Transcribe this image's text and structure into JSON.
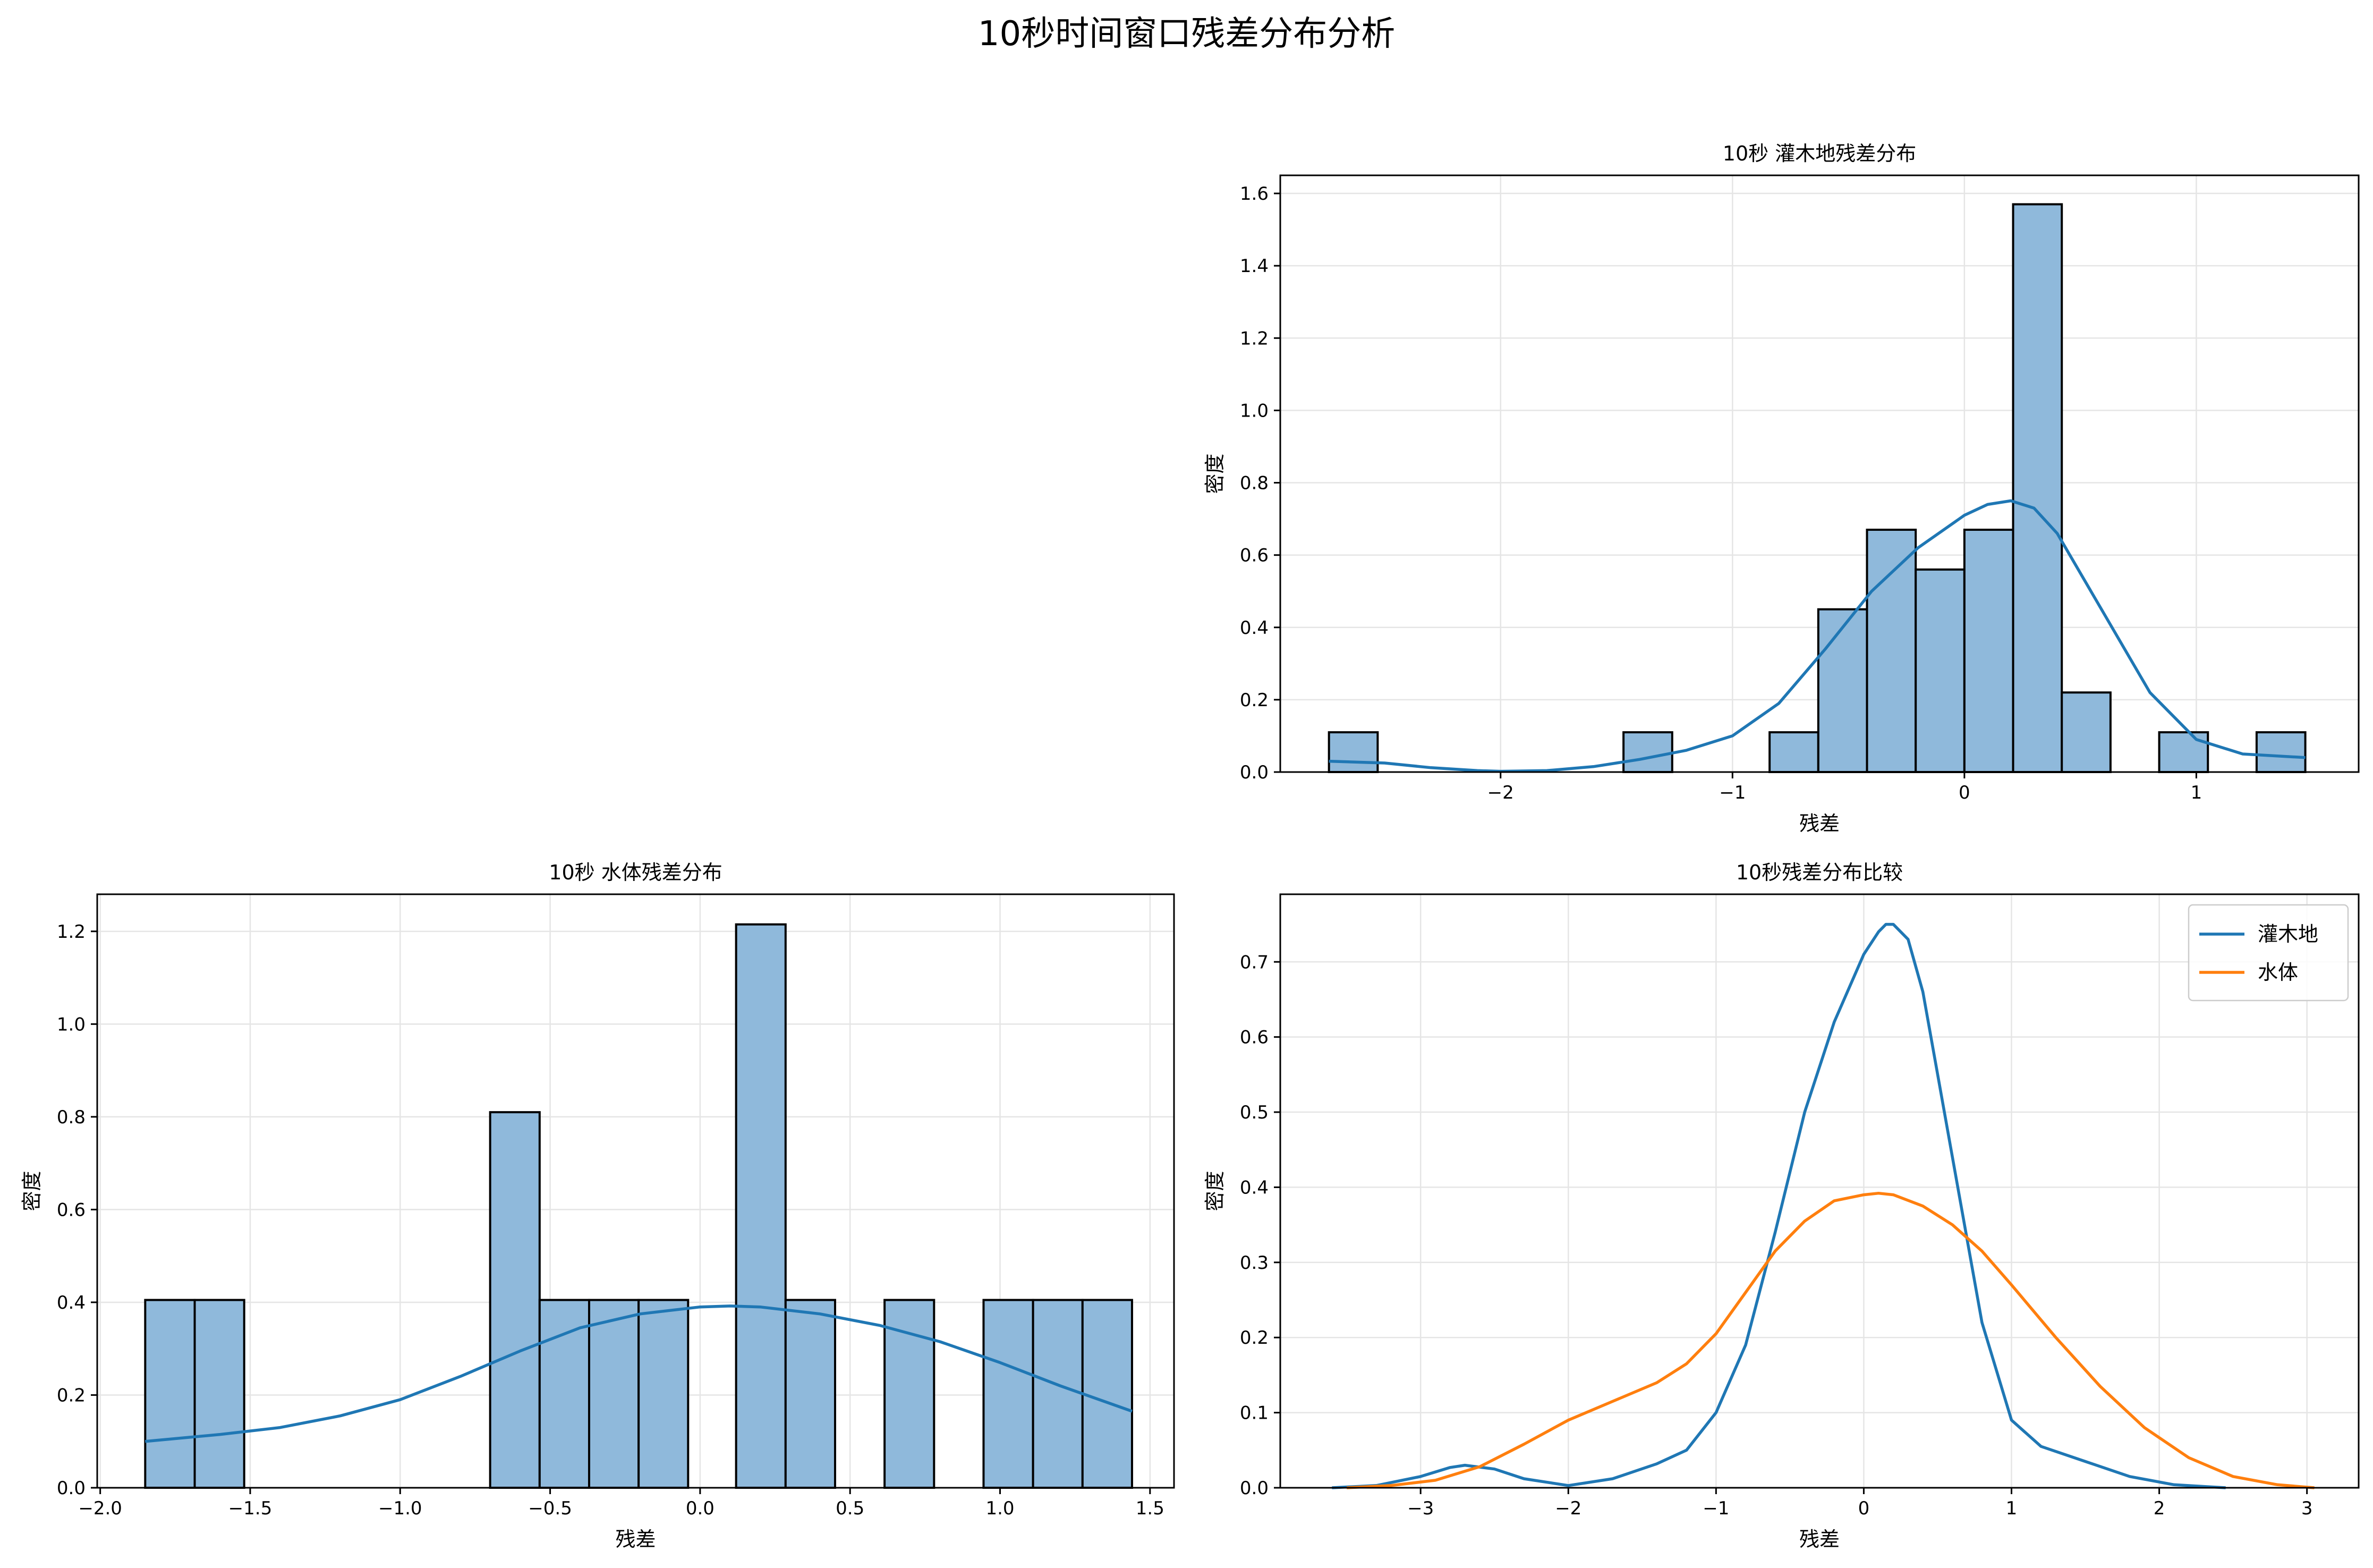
{
  "suptitle": "10秒时间窗口残差分布分析",
  "colors": {
    "hist_fill": "#8fb9db",
    "hist_edge": "#000000",
    "blue": "#1f77b4",
    "orange": "#ff7f0e",
    "grid": "#e5e5e5"
  },
  "chart_data": [
    {
      "type": "bar",
      "title": "10秒 灌木地残差分布",
      "xlabel": "残差",
      "ylabel": "密度",
      "xlim": [
        -2.95,
        1.7
      ],
      "ylim": [
        0,
        1.65
      ],
      "xticks": [
        -2,
        -1,
        0,
        1
      ],
      "xtick_labels": [
        "−2",
        "−1",
        "0",
        "1"
      ],
      "yticks": [
        0,
        0.2,
        0.4,
        0.6,
        0.8,
        1.0,
        1.2,
        1.4,
        1.6
      ],
      "ytick_labels": [
        "0.0",
        "0.2",
        "0.4",
        "0.6",
        "0.8",
        "1.0",
        "1.2",
        "1.4",
        "1.6"
      ],
      "grid": true,
      "bins": [
        {
          "x0": -2.74,
          "x1": -2.53,
          "value": 0.11
        },
        {
          "x0": -1.47,
          "x1": -1.26,
          "value": 0.11
        },
        {
          "x0": -0.84,
          "x1": -0.63,
          "value": 0.11
        },
        {
          "x0": -0.63,
          "x1": -0.42,
          "value": 0.45
        },
        {
          "x0": -0.42,
          "x1": -0.21,
          "value": 0.67
        },
        {
          "x0": -0.21,
          "x1": 0.0,
          "value": 0.56
        },
        {
          "x0": 0.0,
          "x1": 0.21,
          "value": 0.67
        },
        {
          "x0": 0.21,
          "x1": 0.42,
          "value": 1.57
        },
        {
          "x0": 0.42,
          "x1": 0.63,
          "value": 0.22
        },
        {
          "x0": 0.84,
          "x1": 1.05,
          "value": 0.11
        },
        {
          "x0": 1.26,
          "x1": 1.47,
          "value": 0.11
        }
      ],
      "kde": {
        "x": [
          -2.74,
          -2.5,
          -2.3,
          -2.1,
          -2.0,
          -1.8,
          -1.6,
          -1.4,
          -1.2,
          -1.0,
          -0.8,
          -0.6,
          -0.4,
          -0.2,
          0.0,
          0.1,
          0.2,
          0.3,
          0.4,
          0.6,
          0.8,
          1.0,
          1.2,
          1.47
        ],
        "y": [
          0.03,
          0.025,
          0.012,
          0.004,
          0.002,
          0.004,
          0.015,
          0.035,
          0.06,
          0.1,
          0.19,
          0.34,
          0.5,
          0.62,
          0.71,
          0.74,
          0.75,
          0.73,
          0.66,
          0.44,
          0.22,
          0.09,
          0.05,
          0.04
        ]
      }
    },
    {
      "type": "bar",
      "title": "10秒 水体残差分布",
      "xlabel": "残差",
      "ylabel": "密度",
      "xlim": [
        -2.01,
        1.58
      ],
      "ylim": [
        0,
        1.28
      ],
      "xticks": [
        -2.0,
        -1.5,
        -1.0,
        -0.5,
        0.0,
        0.5,
        1.0,
        1.5
      ],
      "xtick_labels": [
        "−2.0",
        "−1.5",
        "−1.0",
        "−0.5",
        "0.0",
        "0.5",
        "1.0",
        "1.5"
      ],
      "yticks": [
        0,
        0.2,
        0.4,
        0.6,
        0.8,
        1.0,
        1.2
      ],
      "ytick_labels": [
        "0.0",
        "0.2",
        "0.4",
        "0.6",
        "0.8",
        "1.0",
        "1.2"
      ],
      "grid": true,
      "bins": [
        {
          "x0": -1.85,
          "x1": -1.685,
          "value": 0.405
        },
        {
          "x0": -1.685,
          "x1": -1.52,
          "value": 0.405
        },
        {
          "x0": -0.7,
          "x1": -0.535,
          "value": 0.81
        },
        {
          "x0": -0.535,
          "x1": -0.37,
          "value": 0.405
        },
        {
          "x0": -0.37,
          "x1": -0.205,
          "value": 0.405
        },
        {
          "x0": -0.205,
          "x1": -0.04,
          "value": 0.405
        },
        {
          "x0": 0.12,
          "x1": 0.285,
          "value": 1.215
        },
        {
          "x0": 0.285,
          "x1": 0.45,
          "value": 0.405
        },
        {
          "x0": 0.615,
          "x1": 0.78,
          "value": 0.405
        },
        {
          "x0": 0.945,
          "x1": 1.11,
          "value": 0.405
        },
        {
          "x0": 1.11,
          "x1": 1.275,
          "value": 0.405
        },
        {
          "x0": 1.275,
          "x1": 1.44,
          "value": 0.405
        }
      ],
      "kde": {
        "x": [
          -1.85,
          -1.6,
          -1.4,
          -1.2,
          -1.0,
          -0.8,
          -0.6,
          -0.4,
          -0.2,
          0.0,
          0.1,
          0.2,
          0.4,
          0.6,
          0.8,
          1.0,
          1.2,
          1.44
        ],
        "y": [
          0.1,
          0.115,
          0.13,
          0.155,
          0.19,
          0.24,
          0.295,
          0.345,
          0.375,
          0.39,
          0.392,
          0.39,
          0.375,
          0.35,
          0.315,
          0.27,
          0.22,
          0.165
        ]
      }
    },
    {
      "type": "line",
      "title": "10秒残差分布比较",
      "xlabel": "残差",
      "ylabel": "密度",
      "xlim": [
        -3.95,
        3.35
      ],
      "ylim": [
        0,
        0.79
      ],
      "xticks": [
        -3,
        -2,
        -1,
        0,
        1,
        2,
        3
      ],
      "xtick_labels": [
        "−3",
        "−2",
        "−1",
        "0",
        "1",
        "2",
        "3"
      ],
      "yticks": [
        0,
        0.1,
        0.2,
        0.3,
        0.4,
        0.5,
        0.6,
        0.7
      ],
      "ytick_labels": [
        "0.0",
        "0.1",
        "0.2",
        "0.3",
        "0.4",
        "0.5",
        "0.6",
        "0.7"
      ],
      "grid": true,
      "legend_position": "top-right",
      "series": [
        {
          "name": "灌木地",
          "color": "#1f77b4",
          "x": [
            -3.6,
            -3.3,
            -3.0,
            -2.8,
            -2.7,
            -2.5,
            -2.3,
            -2.0,
            -1.7,
            -1.4,
            -1.2,
            -1.0,
            -0.8,
            -0.6,
            -0.4,
            -0.2,
            0.0,
            0.1,
            0.15,
            0.2,
            0.3,
            0.4,
            0.6,
            0.8,
            1.0,
            1.2,
            1.5,
            1.8,
            2.1,
            2.45
          ],
          "y": [
            0.0,
            0.003,
            0.015,
            0.027,
            0.03,
            0.025,
            0.012,
            0.003,
            0.012,
            0.032,
            0.05,
            0.1,
            0.19,
            0.34,
            0.5,
            0.62,
            0.71,
            0.74,
            0.75,
            0.75,
            0.73,
            0.66,
            0.44,
            0.22,
            0.09,
            0.055,
            0.035,
            0.015,
            0.004,
            0.0
          ]
        },
        {
          "name": "水体",
          "color": "#ff7f0e",
          "x": [
            -3.5,
            -3.2,
            -2.9,
            -2.6,
            -2.3,
            -2.0,
            -1.7,
            -1.4,
            -1.2,
            -1.0,
            -0.8,
            -0.6,
            -0.4,
            -0.2,
            0.0,
            0.1,
            0.2,
            0.4,
            0.6,
            0.8,
            1.0,
            1.3,
            1.6,
            1.9,
            2.2,
            2.5,
            2.8,
            3.05
          ],
          "y": [
            0.0,
            0.003,
            0.01,
            0.028,
            0.058,
            0.09,
            0.115,
            0.14,
            0.165,
            0.205,
            0.26,
            0.315,
            0.355,
            0.382,
            0.39,
            0.392,
            0.39,
            0.375,
            0.35,
            0.315,
            0.27,
            0.2,
            0.135,
            0.08,
            0.04,
            0.015,
            0.004,
            0.0
          ]
        }
      ]
    }
  ]
}
